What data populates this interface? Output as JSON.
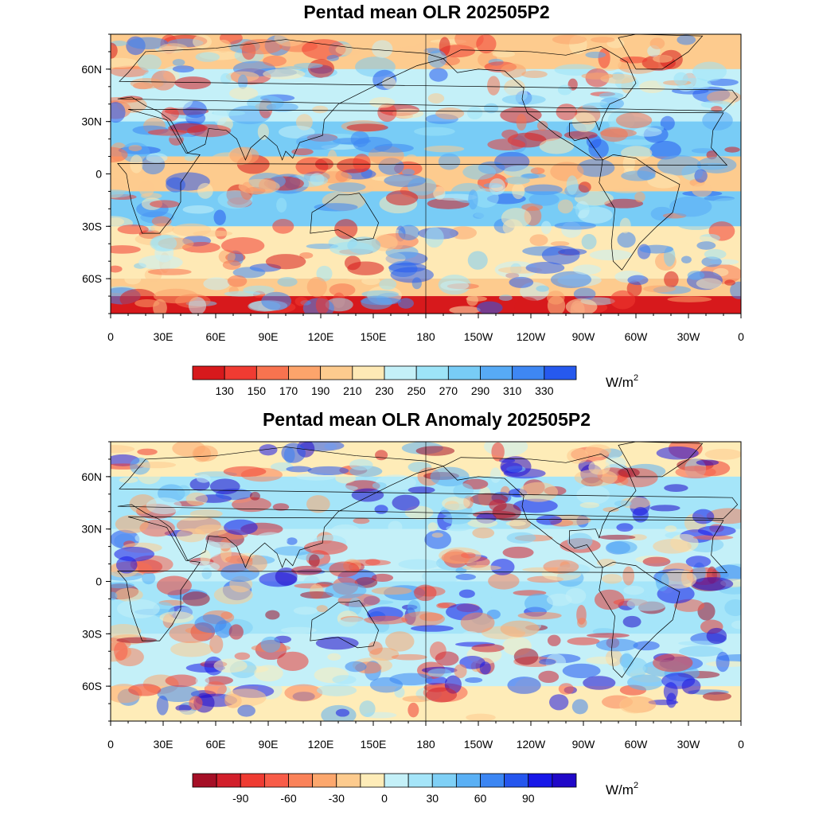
{
  "panels": [
    {
      "id": "mean",
      "title": "Pentad mean OLR 202505P2",
      "lat_labels": [
        "60N",
        "30N",
        "0",
        "30S",
        "60S"
      ],
      "lon_labels": [
        "0",
        "30E",
        "60E",
        "90E",
        "120E",
        "150E",
        "180",
        "150W",
        "120W",
        "90W",
        "60W",
        "30W",
        "0"
      ],
      "colorbar": {
        "colors": [
          "#d7191c",
          "#f03b32",
          "#f8734f",
          "#fca46b",
          "#fdcb8e",
          "#fee9b5",
          "#c4f0f8",
          "#9de4f8",
          "#78ccf6",
          "#57aaf5",
          "#3e87f3",
          "#2659ee"
        ],
        "tick_labels": [
          "130",
          "150",
          "170",
          "190",
          "210",
          "230",
          "250",
          "270",
          "290",
          "310",
          "330"
        ],
        "unit": "W/m",
        "unit_sup": "2"
      }
    },
    {
      "id": "anom",
      "title": "Pentad mean OLR Anomaly 202505P2",
      "lat_labels": [
        "60N",
        "30N",
        "0",
        "30S",
        "60S"
      ],
      "lon_labels": [
        "0",
        "30E",
        "60E",
        "90E",
        "120E",
        "150E",
        "180",
        "150W",
        "120W",
        "90W",
        "60W",
        "30W",
        "0"
      ],
      "colorbar": {
        "colors": [
          "#a50f26",
          "#d21f2b",
          "#ef3b32",
          "#f85c48",
          "#fa8259",
          "#fca76d",
          "#fdcb8e",
          "#feecb8",
          "#c4f0f8",
          "#a5e5f9",
          "#7fd0f6",
          "#5ab0f5",
          "#3c86f3",
          "#2556ee",
          "#1717e8",
          "#2008c8"
        ],
        "tick_labels": [
          "-90",
          "-60",
          "-30",
          "0",
          "30",
          "60",
          "90"
        ],
        "unit": "W/m",
        "unit_sup": "2"
      }
    }
  ]
}
